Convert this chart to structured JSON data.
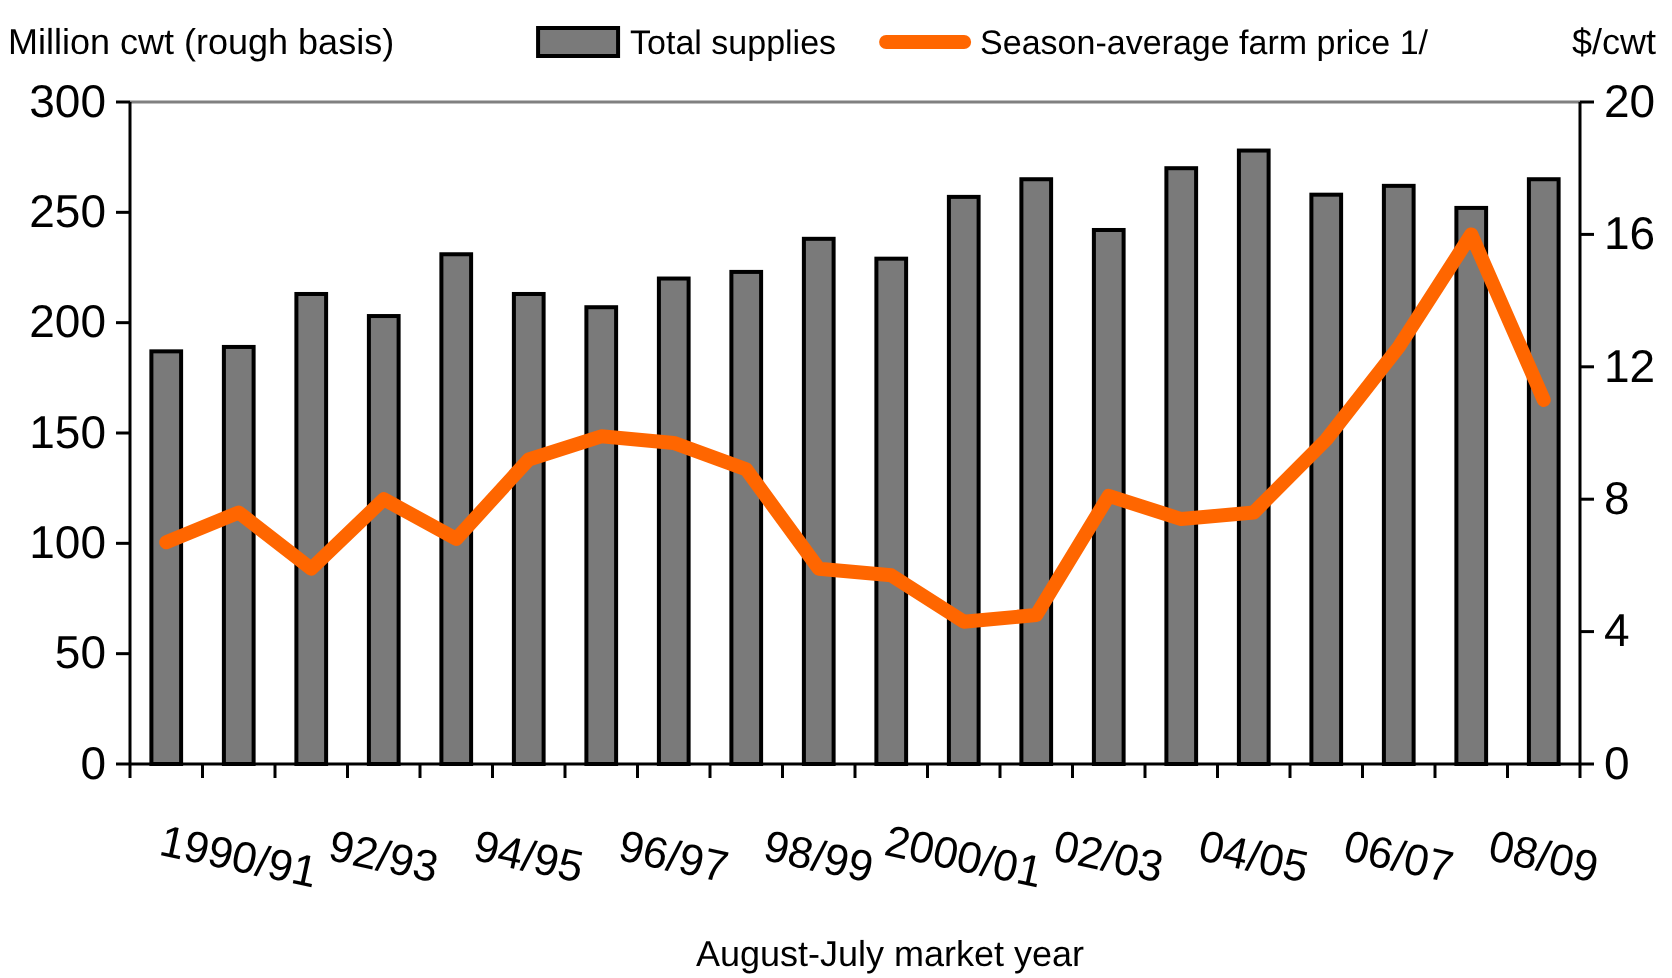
{
  "chart_data": {
    "type": "bar",
    "xlabel": "August-July market year",
    "ylabel": "Million cwt (rough basis)",
    "y2label": "$/cwt",
    "categories": [
      null,
      "1990/91",
      null,
      "92/93",
      null,
      "94/95",
      null,
      "96/97",
      null,
      "98/99",
      null,
      "2000/01",
      null,
      "02/03",
      null,
      "04/05",
      null,
      "06/07",
      null,
      "08/09"
    ],
    "series": [
      {
        "name": "Total supplies",
        "color": "#7a7a7a",
        "values": [
          187,
          189,
          213,
          203,
          231,
          213,
          207,
          220,
          223,
          238,
          229,
          257,
          265,
          242,
          270,
          278,
          258,
          262,
          252,
          265
        ]
      },
      {
        "name": "Season-average farm price 1/",
        "type": "line",
        "axis": "y2",
        "color": "#ff6600",
        "values": [
          6.7,
          7.6,
          5.9,
          8.0,
          6.8,
          9.2,
          9.9,
          9.7,
          8.9,
          5.9,
          5.7,
          4.3,
          4.5,
          8.1,
          7.4,
          7.6,
          9.8,
          12.6,
          16.0,
          11.0
        ]
      }
    ],
    "ylim": [
      0,
      300
    ],
    "yticks": [
      0,
      50,
      100,
      150,
      200,
      250,
      300
    ],
    "y2lim": [
      0,
      20
    ],
    "y2ticks": [
      0,
      4,
      8,
      12,
      16,
      20
    ],
    "legend": "top"
  }
}
